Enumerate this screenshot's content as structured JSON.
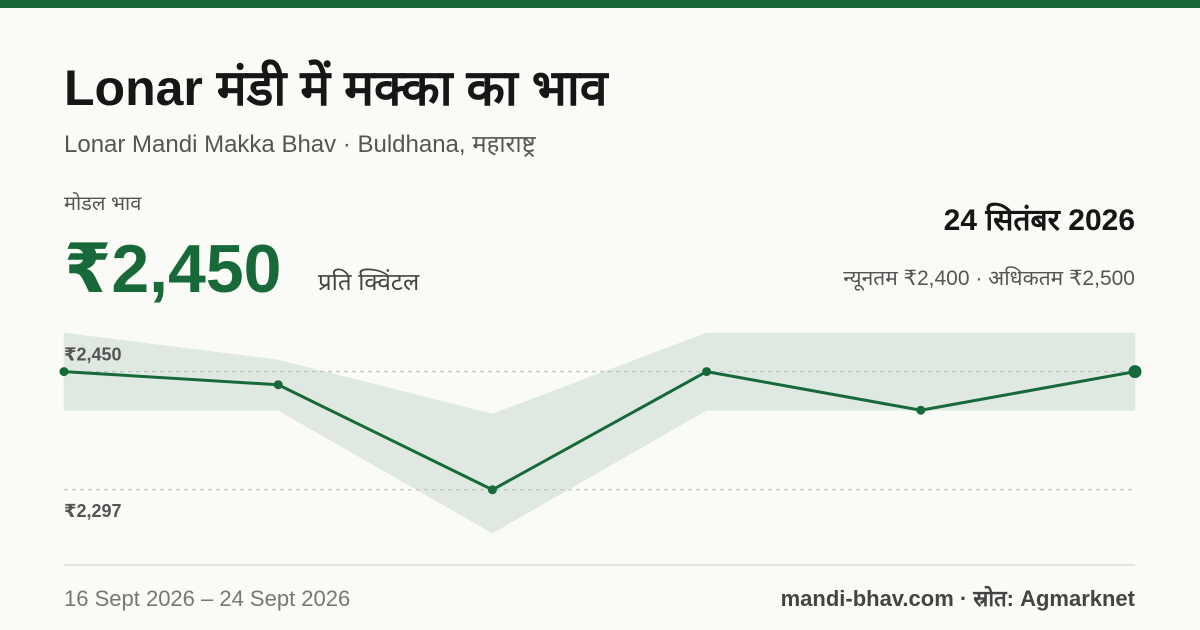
{
  "chart_data": {
    "type": "line",
    "title": "Lonar मंडी में मक्का का भाव",
    "subtitle": "Lonar Mandi Makka Bhav · Buldhana, महाराष्ट्र",
    "price_caption": "मोडल भाव",
    "price": "₹2,450",
    "price_unit": "प्रति क्विंटल",
    "date": "24 सितंबर 2026",
    "range_text": "न्यूनतम ₹2,400 · अधिकतम ₹2,500",
    "period": "16 Sept 2026 – 24 Sept 2026",
    "source": "mandi-bhav.com · स्रोत: Agmarknet",
    "values": [
      2450,
      2433,
      2297,
      2450,
      2400,
      2450
    ],
    "band": {
      "max": [
        2500,
        2465,
        2395,
        2500,
        2500,
        2500
      ],
      "min": [
        2400,
        2400,
        2241,
        2400,
        2400,
        2400
      ]
    },
    "color": "#17693a",
    "band_color": "#dfe9e1",
    "ylim": [
      2241,
      2500
    ],
    "yticks": [
      {
        "value": 2450,
        "label": "₹2,450"
      },
      {
        "value": 2297,
        "label": "₹2,297"
      }
    ],
    "grid": true
  }
}
